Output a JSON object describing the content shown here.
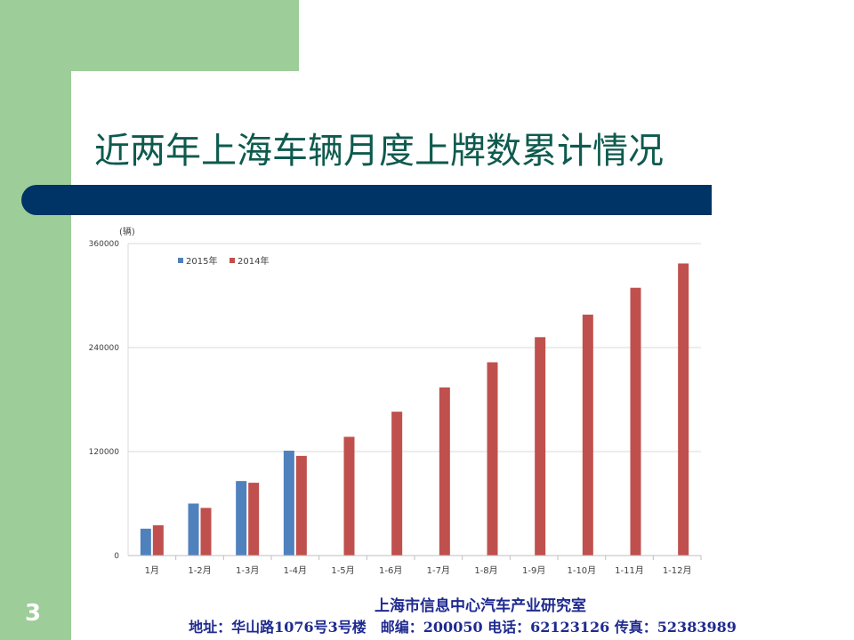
{
  "slide": {
    "title": "近两年上海车辆月度上牌数累计情况",
    "number": "3"
  },
  "footer": {
    "org": "上海市信息中心汽车产业研究室",
    "address": "地址：华山路1076号3号楼　邮编：200050  电话：62123126  传真：52383989"
  },
  "chart_data": {
    "type": "bar",
    "unit_label": "(辆)",
    "categories": [
      "1月",
      "1-2月",
      "1-3月",
      "1-4月",
      "1-5月",
      "1-6月",
      "1-7月",
      "1-8月",
      "1-9月",
      "1-10月",
      "1-11月",
      "1-12月"
    ],
    "series": [
      {
        "name": "2015年",
        "color": "#4f81bd",
        "values": [
          31000,
          60000,
          86000,
          121000,
          null,
          null,
          null,
          null,
          null,
          null,
          null,
          null
        ]
      },
      {
        "name": "2014年",
        "color": "#c0504d",
        "values": [
          35000,
          55000,
          84000,
          115000,
          137000,
          166000,
          194000,
          223000,
          252000,
          278000,
          309000,
          337000
        ]
      }
    ],
    "y_ticks": [
      "0",
      "120000",
      "240000",
      "360000"
    ],
    "ylim": [
      0,
      360000
    ],
    "grid": true,
    "legend_position": "top-left"
  }
}
